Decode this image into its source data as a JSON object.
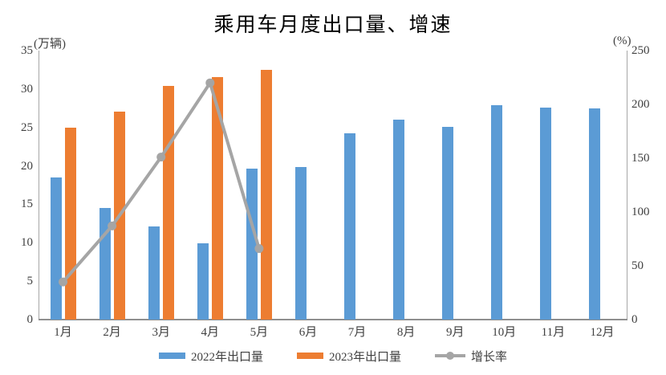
{
  "chart_data": {
    "type": "combo",
    "title": "乘用车月度出口量、增速",
    "ylabel_left": "(万辆)",
    "ylabel_right": "(%)",
    "ylim_left": [
      0,
      35
    ],
    "ylim_right": [
      0,
      250
    ],
    "yticks_left": [
      0,
      5,
      10,
      15,
      20,
      25,
      30,
      35
    ],
    "yticks_right": [
      0,
      50,
      100,
      150,
      200,
      250
    ],
    "grid": false,
    "legend_position": "bottom",
    "categories": [
      "1月",
      "2月",
      "3月",
      "4月",
      "5月",
      "6月",
      "7月",
      "8月",
      "9月",
      "10月",
      "11月",
      "12月"
    ],
    "series": [
      {
        "name": "2022年出口量",
        "type": "bar",
        "axis": "left",
        "color": "#5B9BD5",
        "values": [
          18.5,
          14.5,
          12.1,
          9.9,
          19.6,
          19.8,
          24.2,
          26.0,
          25.1,
          27.9,
          27.6,
          27.5
        ]
      },
      {
        "name": "2023年出口量",
        "type": "bar",
        "axis": "left",
        "color": "#ED7D31",
        "values": [
          25.0,
          27.1,
          30.4,
          31.6,
          32.5,
          null,
          null,
          null,
          null,
          null,
          null,
          null
        ]
      },
      {
        "name": "增长率",
        "type": "line",
        "axis": "right",
        "color": "#A5A5A5",
        "values": [
          35,
          87,
          151,
          220,
          66,
          null,
          null,
          null,
          null,
          null,
          null,
          null
        ]
      }
    ]
  }
}
